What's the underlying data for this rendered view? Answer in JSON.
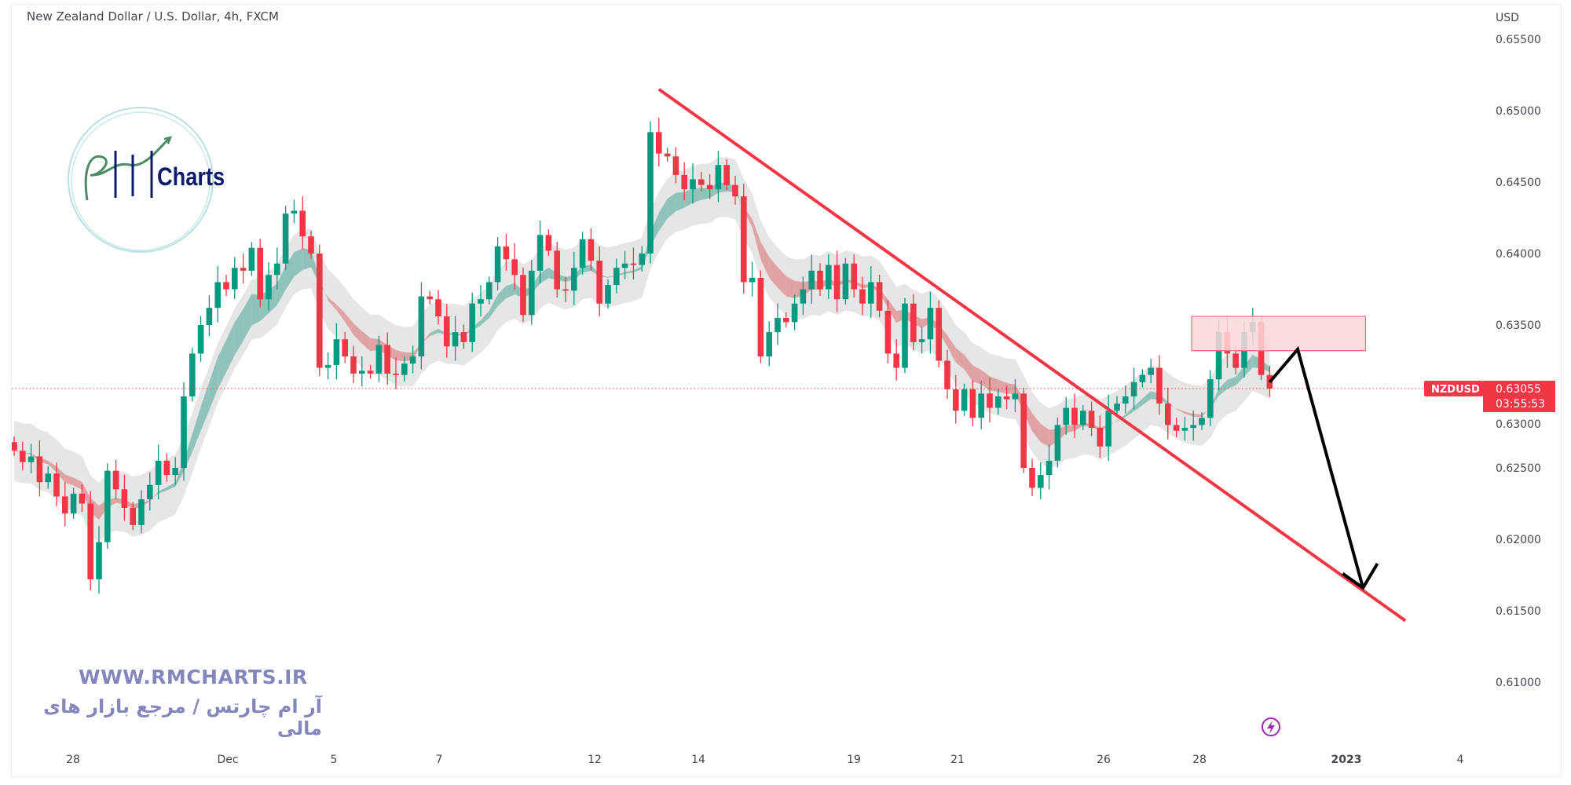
{
  "header": {
    "title": "New Zealand Dollar / U.S. Dollar, 4h, FXCM"
  },
  "watermark": {
    "logo_text": "RM Charts",
    "logo_word": "Charts",
    "url": "WWW.RMCHARTS.IR",
    "tagline_fa": "آر ام چارتس / مرجع بازار های مالی"
  },
  "colors": {
    "up": "#089981",
    "down": "#f23645",
    "trendline": "#f23645",
    "arrow": "#000000",
    "zone_fill": "#fbd7db",
    "zone_border": "#f06a78",
    "ribbon_up": "#8fc3b9",
    "ribbon_down": "#e0a2a2",
    "band": "#e6e6e6",
    "logo_navy": "#0c1a6b",
    "brand": "#8587bc"
  },
  "price_label": {
    "symbol": "NZDUSD",
    "price": "0.63055",
    "countdown": "03:55:53"
  },
  "icons": {
    "bottom": "lightning-icon"
  },
  "chart_data": {
    "type": "candlestick",
    "title": "New Zealand Dollar / U.S. Dollar, 4h, FXCM",
    "currency_label": "USD",
    "ylim": [
      0.6075,
      0.6555
    ],
    "y_ticks": [
      "0.65500",
      "0.65000",
      "0.64500",
      "0.64000",
      "0.63500",
      "0.63000",
      "0.62500",
      "0.62000",
      "0.61500",
      "0.61000"
    ],
    "x_ticks": [
      "28",
      "Dec",
      "5",
      "7",
      "12",
      "14",
      "19",
      "21",
      "26",
      "28",
      "2023",
      "4"
    ],
    "grid": false,
    "last_price": 0.63055,
    "closes": [
      0.6262,
      0.6254,
      0.6258,
      0.624,
      0.6246,
      0.623,
      0.6218,
      0.6232,
      0.6225,
      0.6172,
      0.6198,
      0.6248,
      0.6235,
      0.6222,
      0.621,
      0.6228,
      0.6238,
      0.6255,
      0.6245,
      0.625,
      0.63,
      0.633,
      0.635,
      0.6362,
      0.638,
      0.6375,
      0.639,
      0.6388,
      0.6404,
      0.6368,
      0.6385,
      0.6393,
      0.6428,
      0.643,
      0.6412,
      0.64,
      0.632,
      0.6322,
      0.634,
      0.6328,
      0.6316,
      0.6318,
      0.6316,
      0.6336,
      0.6316,
      0.6315,
      0.6323,
      0.6328,
      0.637,
      0.6368,
      0.6356,
      0.6335,
      0.6345,
      0.6338,
      0.6365,
      0.6368,
      0.638,
      0.6405,
      0.6396,
      0.6385,
      0.6357,
      0.6388,
      0.6413,
      0.6402,
      0.6375,
      0.6374,
      0.639,
      0.641,
      0.6395,
      0.6365,
      0.6378,
      0.639,
      0.6393,
      0.6392,
      0.64,
      0.6485,
      0.647,
      0.6468,
      0.6455,
      0.6445,
      0.6452,
      0.6448,
      0.6445,
      0.6462,
      0.6448,
      0.644,
      0.638,
      0.6383,
      0.6328,
      0.6345,
      0.6355,
      0.6352,
      0.6365,
      0.6375,
      0.6388,
      0.6375,
      0.6392,
      0.6368,
      0.6393,
      0.6375,
      0.6365,
      0.638,
      0.636,
      0.633,
      0.632,
      0.6365,
      0.6338,
      0.634,
      0.6362,
      0.6325,
      0.6305,
      0.629,
      0.6305,
      0.6285,
      0.6302,
      0.6292,
      0.63,
      0.6298,
      0.6302,
      0.625,
      0.6236,
      0.6245,
      0.6255,
      0.628,
      0.6292,
      0.628,
      0.629,
      0.6278,
      0.6265,
      0.629,
      0.6295,
      0.63,
      0.631,
      0.6315,
      0.632,
      0.6295,
      0.628,
      0.6276,
      0.6278,
      0.628,
      0.6285,
      0.6312,
      0.6345,
      0.633,
      0.632,
      0.6345,
      0.6352,
      0.6315,
      0.63055
    ],
    "first_open": 0.6268,
    "drawings": {
      "trendline": {
        "from": {
          "bar": 76,
          "price": 0.6515
        },
        "to": {
          "bar": 164,
          "price": 0.6143
        }
      },
      "resistance_zone": {
        "bar_from": 138.8,
        "bar_to": 159.3,
        "price_top": 0.6356,
        "price_bottom": 0.6332
      },
      "forecast_path": [
        {
          "bar": 148,
          "price": 0.631
        },
        {
          "bar": 151.3,
          "price": 0.6333
        },
        {
          "bar": 159,
          "price": 0.6166
        }
      ],
      "arrowhead": [
        {
          "bar": 156.6,
          "price": 0.6176
        },
        {
          "bar": 159,
          "price": 0.6166
        },
        {
          "bar": 160.7,
          "price": 0.6183
        }
      ]
    }
  }
}
